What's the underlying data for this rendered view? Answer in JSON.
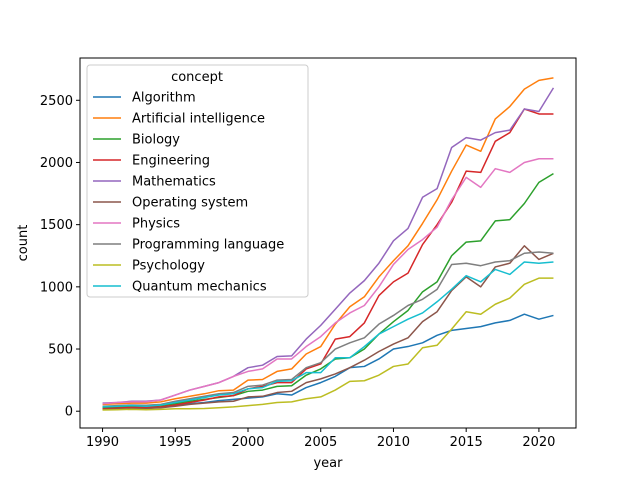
{
  "chart_data": {
    "type": "line",
    "xlabel": "year",
    "ylabel": "count",
    "xlim": [
      1988.45,
      2022.55
    ],
    "ylim": [
      -135,
      2840
    ],
    "x_ticks": [
      1990,
      1995,
      2000,
      2005,
      2010,
      2015,
      2020
    ],
    "y_ticks": [
      0,
      500,
      1000,
      1500,
      2000,
      2500
    ],
    "grid": false,
    "legend": {
      "title": "concept",
      "position": "upper-left"
    },
    "x": [
      1990,
      1991,
      1992,
      1993,
      1994,
      1995,
      1996,
      1997,
      1998,
      1999,
      2000,
      2001,
      2002,
      2003,
      2004,
      2005,
      2006,
      2007,
      2008,
      2009,
      2010,
      2011,
      2012,
      2013,
      2014,
      2015,
      2016,
      2017,
      2018,
      2019,
      2020,
      2021
    ],
    "series": [
      {
        "name": "Algorithm",
        "color": "#1f77b4",
        "values": [
          25,
          28,
          30,
          28,
          32,
          45,
          60,
          70,
          85,
          95,
          105,
          115,
          140,
          130,
          190,
          230,
          280,
          350,
          360,
          420,
          500,
          520,
          550,
          610,
          650,
          665,
          680,
          710,
          730,
          780,
          740,
          770
        ]
      },
      {
        "name": "Artificial intelligence",
        "color": "#ff7f0e",
        "values": [
          55,
          60,
          65,
          65,
          75,
          100,
          120,
          140,
          165,
          170,
          250,
          255,
          320,
          340,
          460,
          520,
          700,
          840,
          920,
          1080,
          1210,
          1330,
          1510,
          1700,
          1930,
          2140,
          2090,
          2350,
          2450,
          2590,
          2660,
          2680
        ]
      },
      {
        "name": "Biology",
        "color": "#2ca02c",
        "values": [
          30,
          35,
          40,
          40,
          45,
          60,
          80,
          95,
          110,
          125,
          160,
          170,
          200,
          205,
          290,
          340,
          420,
          430,
          500,
          620,
          720,
          810,
          960,
          1040,
          1250,
          1360,
          1370,
          1530,
          1540,
          1670,
          1840,
          1910
        ]
      },
      {
        "name": "Engineering",
        "color": "#d62728",
        "values": [
          20,
          25,
          30,
          30,
          35,
          50,
          70,
          90,
          115,
          125,
          180,
          200,
          230,
          230,
          340,
          380,
          580,
          600,
          710,
          930,
          1040,
          1110,
          1340,
          1500,
          1680,
          1930,
          1920,
          2170,
          2240,
          2430,
          2390,
          2390
        ]
      },
      {
        "name": "Mathematics",
        "color": "#9467bd",
        "values": [
          65,
          70,
          80,
          80,
          90,
          130,
          170,
          200,
          230,
          280,
          350,
          370,
          440,
          445,
          580,
          690,
          820,
          950,
          1050,
          1190,
          1370,
          1470,
          1720,
          1790,
          2120,
          2200,
          2180,
          2240,
          2260,
          2430,
          2410,
          2600
        ]
      },
      {
        "name": "Operating system",
        "color": "#8c564b",
        "values": [
          15,
          18,
          22,
          22,
          28,
          40,
          55,
          65,
          75,
          80,
          115,
          120,
          150,
          160,
          230,
          260,
          300,
          350,
          410,
          480,
          540,
          590,
          720,
          800,
          970,
          1080,
          1000,
          1160,
          1190,
          1330,
          1220,
          1270
        ]
      },
      {
        "name": "Physics",
        "color": "#e377c2",
        "values": [
          60,
          70,
          75,
          75,
          90,
          130,
          170,
          200,
          230,
          280,
          320,
          340,
          420,
          420,
          520,
          600,
          710,
          790,
          850,
          1000,
          1180,
          1300,
          1380,
          1480,
          1700,
          1880,
          1800,
          1950,
          1920,
          2000,
          2030,
          2030
        ]
      },
      {
        "name": "Programming language",
        "color": "#7f7f7f",
        "values": [
          40,
          45,
          50,
          48,
          55,
          80,
          100,
          120,
          140,
          150,
          200,
          210,
          250,
          255,
          350,
          390,
          500,
          550,
          590,
          700,
          770,
          850,
          900,
          980,
          1180,
          1190,
          1170,
          1200,
          1210,
          1270,
          1280,
          1270
        ]
      },
      {
        "name": "Psychology",
        "color": "#bcbd22",
        "values": [
          10,
          12,
          15,
          12,
          15,
          20,
          20,
          22,
          28,
          35,
          45,
          55,
          70,
          75,
          100,
          115,
          170,
          240,
          245,
          290,
          360,
          380,
          510,
          530,
          660,
          800,
          780,
          860,
          910,
          1020,
          1070,
          1070
        ]
      },
      {
        "name": "Quantum mechanics",
        "color": "#17becf",
        "values": [
          35,
          40,
          45,
          40,
          50,
          70,
          90,
          110,
          130,
          140,
          180,
          190,
          240,
          245,
          310,
          310,
          430,
          430,
          520,
          620,
          680,
          740,
          790,
          880,
          980,
          1090,
          1040,
          1140,
          1100,
          1200,
          1190,
          1200
        ]
      }
    ]
  }
}
